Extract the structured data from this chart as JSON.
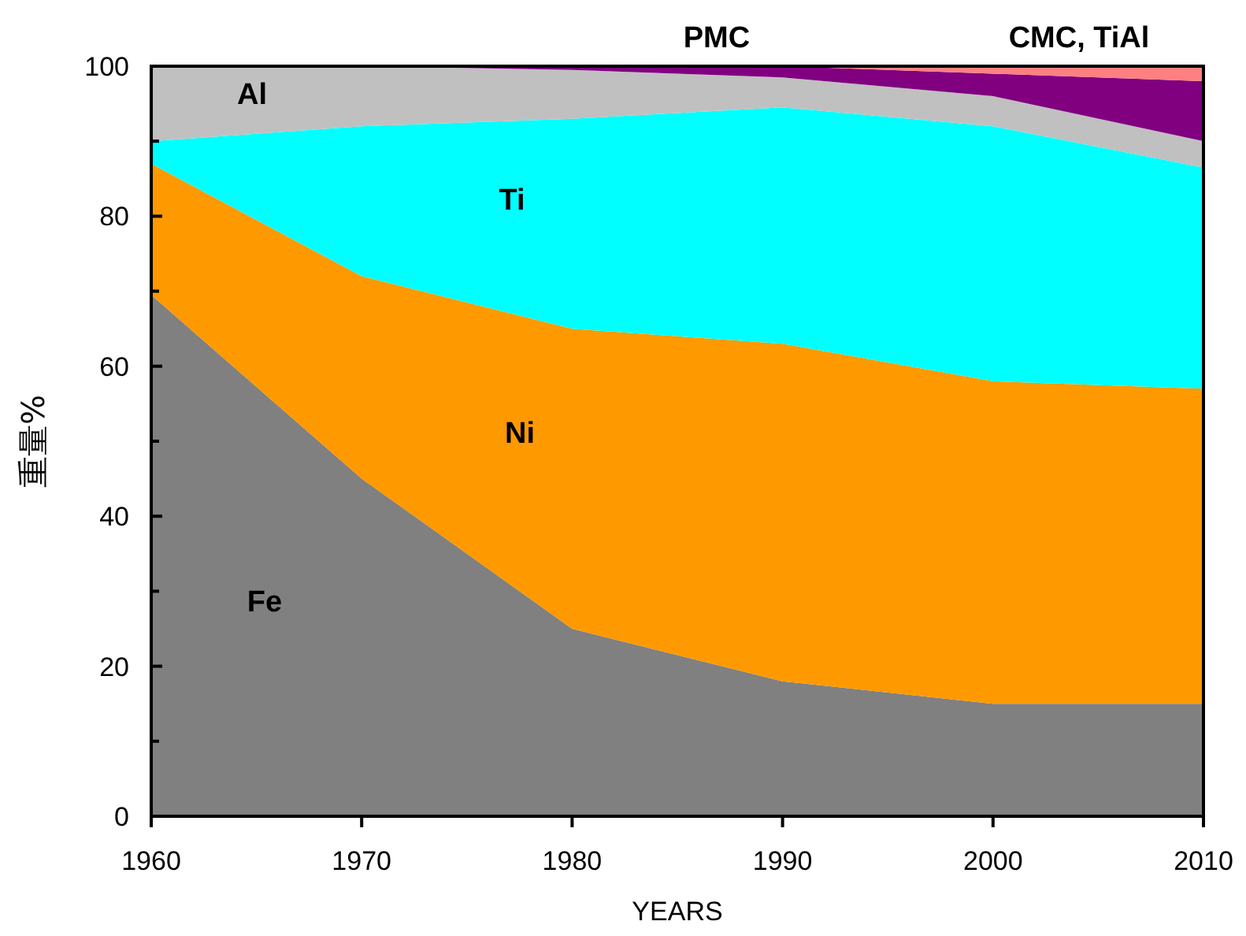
{
  "chart_data": {
    "type": "area",
    "stacked": true,
    "xlabel": "YEARS",
    "ylabel": "重量%",
    "x": [
      1960,
      1970,
      1980,
      1990,
      2000,
      2010
    ],
    "xlim": [
      1960,
      2010
    ],
    "xticks": [
      1960,
      1970,
      1980,
      1990,
      2000,
      2010
    ],
    "ylim": [
      0,
      100
    ],
    "yticks": [
      0,
      {
        "value": 10,
        "label": null
      },
      20,
      {
        "value": 30,
        "label": null
      },
      40,
      {
        "value": 50,
        "label": null
      },
      60,
      {
        "value": 70,
        "label": null
      },
      80,
      {
        "value": 90,
        "label": null
      },
      100
    ],
    "grid": false,
    "legend": false,
    "series": [
      {
        "name": "Fe",
        "color": "#808080",
        "values": [
          69.5,
          45,
          25,
          18,
          15,
          15
        ]
      },
      {
        "name": "Ni",
        "color": "#ff9900",
        "values": [
          17.5,
          27,
          40,
          45,
          43,
          42
        ]
      },
      {
        "name": "Ti",
        "color": "#00ffff",
        "values": [
          3,
          20,
          28,
          31.5,
          34,
          29.5
        ]
      },
      {
        "name": "Al",
        "color": "#c0c0c0",
        "values": [
          10,
          8,
          6.5,
          4,
          4,
          3.5
        ]
      },
      {
        "name": "PMC",
        "color": "#800080",
        "values": [
          0,
          0,
          0.5,
          1.5,
          3,
          8
        ]
      },
      {
        "name": "CMC, TiAl",
        "color": "#ff8080",
        "values": [
          0,
          0,
          0,
          0,
          1,
          2
        ]
      }
    ]
  }
}
